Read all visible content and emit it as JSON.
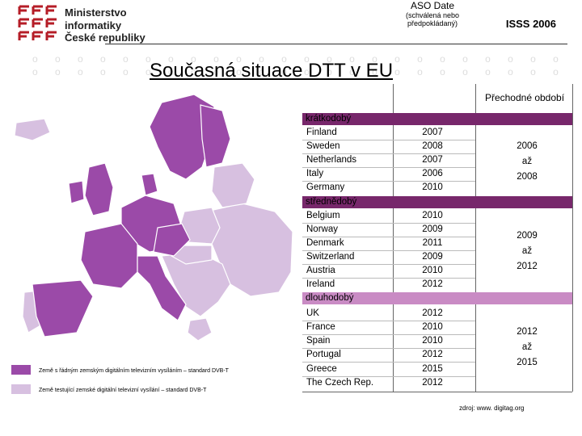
{
  "header": {
    "org_line1": "Ministerstvo",
    "org_line2": "informatiky",
    "org_line3": "České republiky",
    "code": "ISSS 2006"
  },
  "title": "Současná situace DTT v EU",
  "table": {
    "col_date": "ASO Date",
    "col_date_note": "(schválená nebo předpokládaný)",
    "col_transition": "Přechodné období",
    "groups": [
      {
        "label": "krátkodobý",
        "rows": [
          {
            "country": "Finland",
            "date": "2007"
          },
          {
            "country": "Sweden",
            "date": "2008"
          },
          {
            "country": "Netherlands",
            "date": "2007"
          },
          {
            "country": "Italy",
            "date": "2006"
          },
          {
            "country": "Germany",
            "date": "2010"
          }
        ],
        "period_from": "2006",
        "period_to_word": "až",
        "period_to": "2008"
      },
      {
        "label": "střednědobý",
        "rows": [
          {
            "country": "Belgium",
            "date": "2010"
          },
          {
            "country": "Norway",
            "date": "2009"
          },
          {
            "country": "Denmark",
            "date": "2011"
          },
          {
            "country": "Switzerland",
            "date": "2009"
          },
          {
            "country": "Austria",
            "date": "2010"
          },
          {
            "country": "Ireland",
            "date": "2012"
          }
        ],
        "period_from": "2009",
        "period_to_word": "až",
        "period_to": "2012"
      },
      {
        "label": "dlouhodobý",
        "rows": [
          {
            "country": "UK",
            "date": "2012"
          },
          {
            "country": "France",
            "date": "2010"
          },
          {
            "country": "Spain",
            "date": "2010"
          },
          {
            "country": "Portugal",
            "date": "2012"
          },
          {
            "country": "Greece",
            "date": "2015"
          },
          {
            "country": "The Czech Rep.",
            "date": "2012"
          }
        ],
        "period_from": "2012",
        "period_to_word": "až",
        "period_to": "2015"
      }
    ]
  },
  "legend": {
    "item1": "Země s řádným zemským digitálním televizním vysíláním – standard DVB-T",
    "item2": "Země  testující  zemské digitální televizní vysílání – standard DVB-T"
  },
  "source": "zdroj: www. digitag.org",
  "colors": {
    "dark_purple": "#9b4aa8",
    "light_purple": "#d7c0e0",
    "group_bar": "#77276b",
    "brand_red": "#b51d27"
  }
}
